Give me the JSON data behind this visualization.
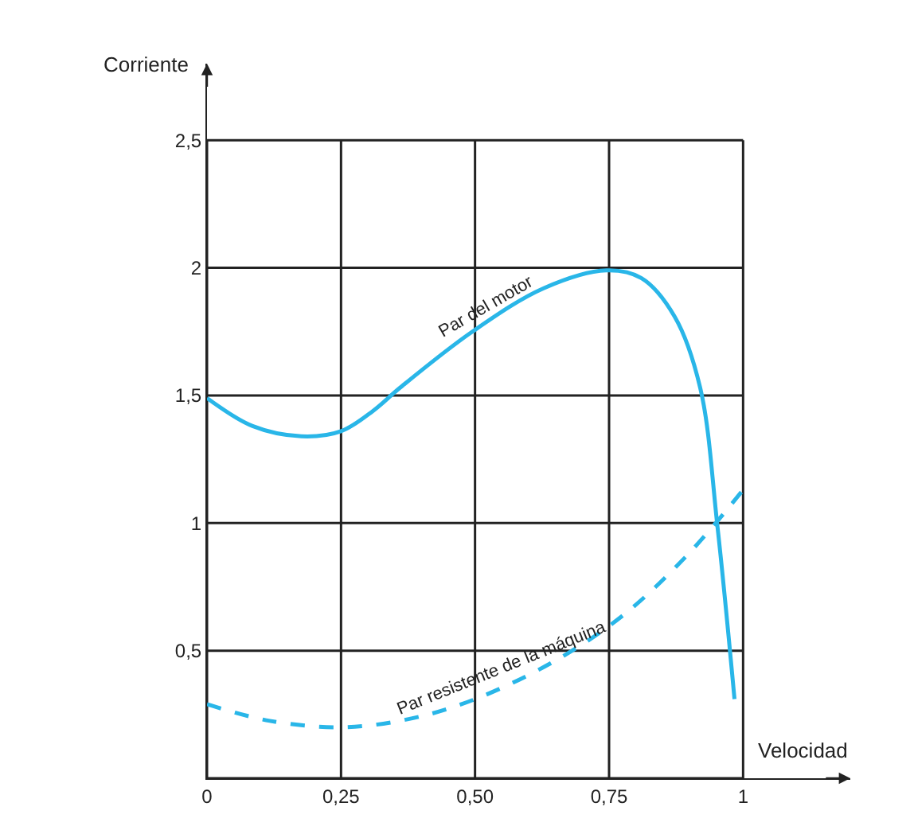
{
  "chart_data": {
    "type": "line",
    "xlabel": "Velocidad",
    "ylabel": "Corriente",
    "xlim": [
      0,
      1.2
    ],
    "ylim": [
      0,
      2.8
    ],
    "xticks": [
      0,
      {
        "value": 0.25,
        "label": "0,25"
      },
      {
        "value": 0.5,
        "label": "0,50"
      },
      {
        "value": 0.75,
        "label": "0,75"
      },
      1
    ],
    "yticks": [
      {
        "value": 0,
        "label": null
      },
      {
        "value": 0.5,
        "label": "0,5"
      },
      1,
      {
        "value": 1.5,
        "label": "1,5"
      },
      2,
      {
        "value": 2.5,
        "label": "2,5"
      }
    ],
    "grid": true,
    "marker": "none",
    "series": [
      {
        "color": "#29b6e8",
        "line_style": "solid",
        "x": [
          0,
          0.085,
          0.176,
          0.25,
          0.31,
          0.36,
          0.495,
          0.628,
          0.745,
          0.81,
          0.872,
          0.92,
          0.952,
          0.984
        ],
        "values": [
          1.49,
          1.38,
          1.34,
          1.36,
          1.44,
          1.53,
          1.75,
          1.92,
          1.99,
          1.96,
          1.81,
          1.53,
          0.99,
          0.31
        ]
      },
      {
        "color": "#29b6e8",
        "line_style": "dashed",
        "x": [
          0,
          0.117,
          0.255,
          0.383,
          0.5,
          0.649,
          0.777,
          0.894,
          1.0
        ],
        "values": [
          0.29,
          0.225,
          0.2,
          0.235,
          0.31,
          0.46,
          0.64,
          0.87,
          1.13
        ]
      }
    ],
    "annotations": [
      {
        "text": "Par del motor",
        "x": 0.52,
        "y": 1.78
      },
      {
        "text": "Par resistente de la máquina",
        "x": 0.55,
        "y": 0.36
      }
    ]
  }
}
